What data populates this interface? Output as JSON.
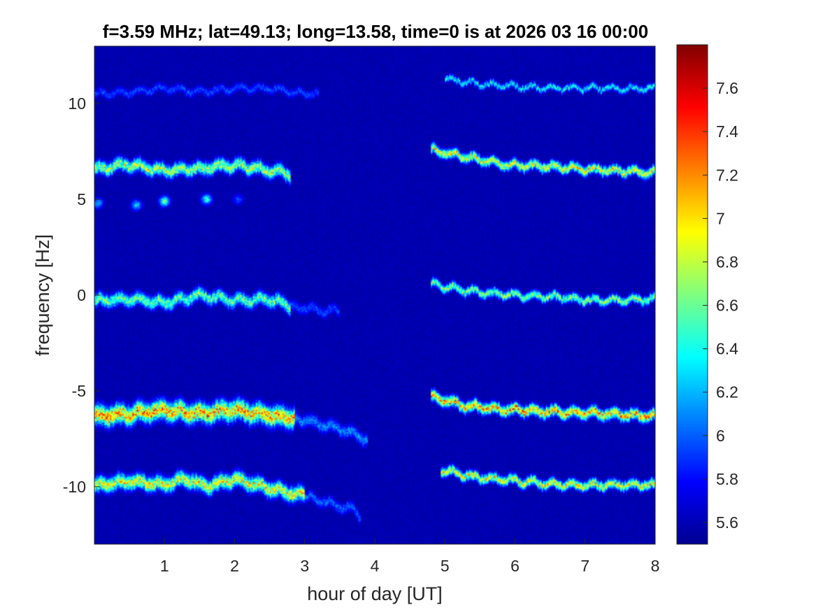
{
  "chart_data": {
    "type": "heatmap",
    "title": "f=3.59 MHz;  lat=49.13; long=13.58, time=0 is at 2026 03 16 00:00",
    "xlabel": "hour of day [UT]",
    "ylabel": "frequency [Hz]",
    "xlim": [
      0,
      8
    ],
    "ylim": [
      -13,
      13
    ],
    "x_ticks": [
      1,
      2,
      3,
      4,
      5,
      6,
      7,
      8
    ],
    "y_ticks": [
      -10,
      -5,
      0,
      5,
      10
    ],
    "colormap": "jet",
    "background_color": "#00008f",
    "colorbar": {
      "range": [
        5.5,
        7.8
      ],
      "ticks": [
        5.6,
        5.8,
        6,
        6.2,
        6.4,
        6.6,
        6.8,
        7,
        7.2,
        7.4,
        7.6
      ]
    },
    "grid": false,
    "traces": [
      {
        "x": [
          0,
          0.5,
          1.0,
          1.5,
          2.0,
          2.5,
          2.85
        ],
        "y": [
          -6.3,
          -6.2,
          -6.0,
          -6.2,
          -6.0,
          -6.3,
          -6.4
        ],
        "peak": 7.6,
        "width": 0.45
      },
      {
        "x": [
          2.85,
          3.2,
          3.6,
          3.9
        ],
        "y": [
          -6.4,
          -6.7,
          -7.1,
          -7.6
        ],
        "peak": 6.2,
        "width": 0.3
      },
      {
        "x": [
          0,
          0.5,
          1.0,
          1.3,
          1.6,
          2.0,
          2.5,
          3.0
        ],
        "y": [
          -10.0,
          -9.7,
          -9.9,
          -9.6,
          -10.0,
          -9.6,
          -10.1,
          -10.5
        ],
        "peak": 7.3,
        "width": 0.35
      },
      {
        "x": [
          3.0,
          3.4,
          3.7,
          3.8
        ],
        "y": [
          -10.5,
          -10.9,
          -11.2,
          -11.6
        ],
        "peak": 6.1,
        "width": 0.25
      },
      {
        "x": [
          0,
          0.5,
          1.0,
          1.5,
          2.0,
          2.5,
          2.8
        ],
        "y": [
          -0.3,
          -0.2,
          -0.4,
          0.0,
          -0.3,
          -0.2,
          -0.6
        ],
        "peak": 6.9,
        "width": 0.3
      },
      {
        "x": [
          2.8,
          3.2,
          3.5
        ],
        "y": [
          -0.6,
          -0.8,
          -0.8
        ],
        "peak": 6.0,
        "width": 0.25
      },
      {
        "x": [
          0,
          0.5,
          1.0,
          1.5,
          2.0,
          2.5,
          2.8
        ],
        "y": [
          6.6,
          6.8,
          6.5,
          6.6,
          6.8,
          6.5,
          6.3
        ],
        "peak": 7.1,
        "width": 0.3
      },
      {
        "x": [
          0,
          0.5,
          1.0,
          1.5,
          2.0,
          2.5,
          3.0,
          3.2
        ],
        "y": [
          10.5,
          10.6,
          10.8,
          10.6,
          10.8,
          10.8,
          10.5,
          10.5
        ],
        "peak": 6.0,
        "width": 0.2
      },
      {
        "x": [
          4.8,
          5.3,
          6.0,
          6.6,
          7.2,
          8.0
        ],
        "y": [
          -5.3,
          -5.8,
          -6.0,
          -6.1,
          -6.2,
          -6.3
        ],
        "peak": 7.6,
        "width": 0.25
      },
      {
        "x": [
          4.95,
          5.4,
          6.0,
          6.6,
          7.2,
          8.0
        ],
        "y": [
          -9.1,
          -9.5,
          -9.7,
          -9.9,
          -9.9,
          -9.9
        ],
        "peak": 7.3,
        "width": 0.22
      },
      {
        "x": [
          4.8,
          5.3,
          6.0,
          6.6,
          7.2,
          8.0
        ],
        "y": [
          0.6,
          0.2,
          0.0,
          -0.1,
          -0.3,
          -0.2
        ],
        "peak": 7.0,
        "width": 0.2
      },
      {
        "x": [
          4.8,
          5.3,
          5.9,
          6.5,
          7.0,
          8.0
        ],
        "y": [
          7.6,
          7.2,
          6.8,
          6.7,
          6.6,
          6.4
        ],
        "peak": 7.3,
        "width": 0.22
      },
      {
        "x": [
          5.0,
          5.5,
          6.0,
          6.5,
          7.0,
          8.0
        ],
        "y": [
          11.3,
          11.0,
          10.9,
          10.8,
          10.8,
          10.8
        ],
        "peak": 6.6,
        "width": 0.15
      }
    ],
    "blobs": [
      {
        "x": 0.05,
        "y": 4.8,
        "peak": 6.3
      },
      {
        "x": 0.6,
        "y": 4.7,
        "peak": 6.4
      },
      {
        "x": 1.0,
        "y": 4.9,
        "peak": 6.8
      },
      {
        "x": 1.6,
        "y": 5.0,
        "peak": 6.6
      },
      {
        "x": 2.05,
        "y": 5.0,
        "peak": 6.0
      }
    ]
  }
}
